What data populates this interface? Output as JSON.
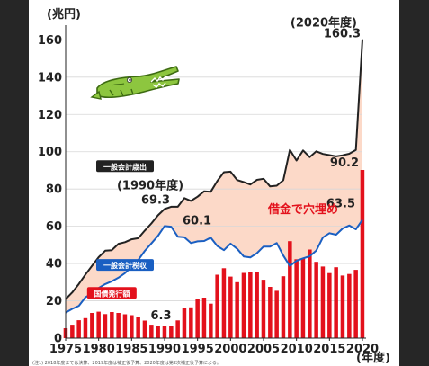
{
  "chart_data": {
    "type": "bar",
    "y_unit": "(兆円)",
    "x_unit": "(年度)",
    "ylim": [
      0,
      165
    ],
    "y_ticks": [
      0,
      20,
      40,
      60,
      80,
      100,
      120,
      140,
      160
    ],
    "x_ticks": [
      "1975",
      "1980",
      "1985",
      "1990",
      "1995",
      "2000",
      "2005",
      "2010",
      "2015",
      "2020"
    ],
    "x": [
      1975,
      1976,
      1977,
      1978,
      1979,
      1980,
      1981,
      1982,
      1983,
      1984,
      1985,
      1986,
      1987,
      1988,
      1989,
      1990,
      1991,
      1992,
      1993,
      1994,
      1995,
      1996,
      1997,
      1998,
      1999,
      2000,
      2001,
      2002,
      2003,
      2004,
      2005,
      2006,
      2007,
      2008,
      2009,
      2010,
      2011,
      2012,
      2013,
      2014,
      2015,
      2016,
      2017,
      2018,
      2019,
      2020
    ],
    "series": [
      {
        "name": "一般会計歳出",
        "type": "line",
        "color": "#222222",
        "values": [
          20.9,
          24.5,
          29.1,
          34.1,
          38.8,
          43.4,
          46.9,
          47.2,
          50.6,
          51.5,
          53.0,
          53.6,
          57.7,
          61.5,
          65.9,
          69.3,
          70.5,
          70.5,
          75.1,
          73.6,
          75.9,
          78.8,
          78.5,
          84.4,
          89.0,
          89.3,
          84.8,
          83.7,
          82.4,
          84.9,
          85.5,
          81.4,
          81.8,
          84.7,
          101.0,
          95.3,
          100.7,
          97.1,
          100.2,
          98.8,
          98.2,
          97.5,
          98.1,
          98.9,
          101.0,
          160.3
        ]
      },
      {
        "name": "一般会計税収",
        "type": "line",
        "color": "#1a5fc2",
        "values": [
          13.7,
          15.7,
          17.3,
          21.9,
          24.0,
          26.9,
          29.0,
          30.5,
          32.4,
          34.9,
          38.2,
          41.9,
          46.8,
          50.8,
          54.9,
          60.1,
          59.8,
          54.4,
          54.1,
          51.0,
          51.9,
          52.1,
          53.9,
          49.4,
          47.2,
          50.7,
          47.9,
          43.8,
          43.3,
          45.6,
          49.1,
          49.1,
          51.0,
          44.3,
          38.7,
          41.5,
          42.8,
          43.9,
          47.0,
          54.0,
          56.3,
          55.5,
          58.8,
          60.4,
          58.4,
          63.5
        ]
      },
      {
        "name": "国債発行額",
        "type": "bar",
        "color": "#e3111c",
        "values": [
          5.3,
          7.2,
          9.6,
          10.7,
          13.5,
          14.2,
          12.9,
          14.0,
          13.5,
          12.8,
          12.3,
          11.3,
          9.4,
          7.2,
          6.6,
          6.3,
          6.7,
          9.5,
          16.2,
          16.5,
          21.2,
          21.7,
          18.5,
          34.0,
          37.5,
          33.0,
          30.0,
          35.0,
          35.3,
          35.5,
          31.3,
          27.5,
          25.4,
          33.2,
          52.0,
          42.3,
          42.8,
          47.5,
          40.9,
          38.4,
          34.9,
          38.0,
          33.6,
          34.4,
          36.6,
          90.2
        ]
      }
    ],
    "annotations": [
      {
        "text": "(2020年度)",
        "year": 2020,
        "value": 160.3
      },
      {
        "text": "160.3",
        "year": 2020,
        "value": 160.3
      },
      {
        "text": "90.2",
        "year": 2020,
        "value": 90.2
      },
      {
        "text": "63.5",
        "year": 2020,
        "value": 63.5
      },
      {
        "text": "(1990年度)",
        "year": 1990,
        "value": 69.3
      },
      {
        "text": "69.3",
        "year": 1990,
        "value": 69.3
      },
      {
        "text": "60.1",
        "year": 1990,
        "value": 60.1
      },
      {
        "text": "6.3",
        "year": 1990,
        "value": 6.3
      },
      {
        "text": "借金で穴埋め",
        "year": 2011,
        "value": 67
      }
    ],
    "series_labels": [
      {
        "text": "一般会計歳出",
        "year": 1984,
        "value": 92
      },
      {
        "text": "一般会計税収",
        "year": 1984,
        "value": 39
      },
      {
        "text": "国債発行額",
        "year": 1982,
        "value": 24
      }
    ],
    "colors": {
      "gap_fill": "#fcd9c8",
      "line_black": "#222222",
      "line_blue": "#1a5fc2",
      "bar_red": "#e3111c"
    },
    "footnote": "(注1) 2018年度までは決算、2019年度は補正後予算、2020年度は第2次補正後予算による。"
  }
}
